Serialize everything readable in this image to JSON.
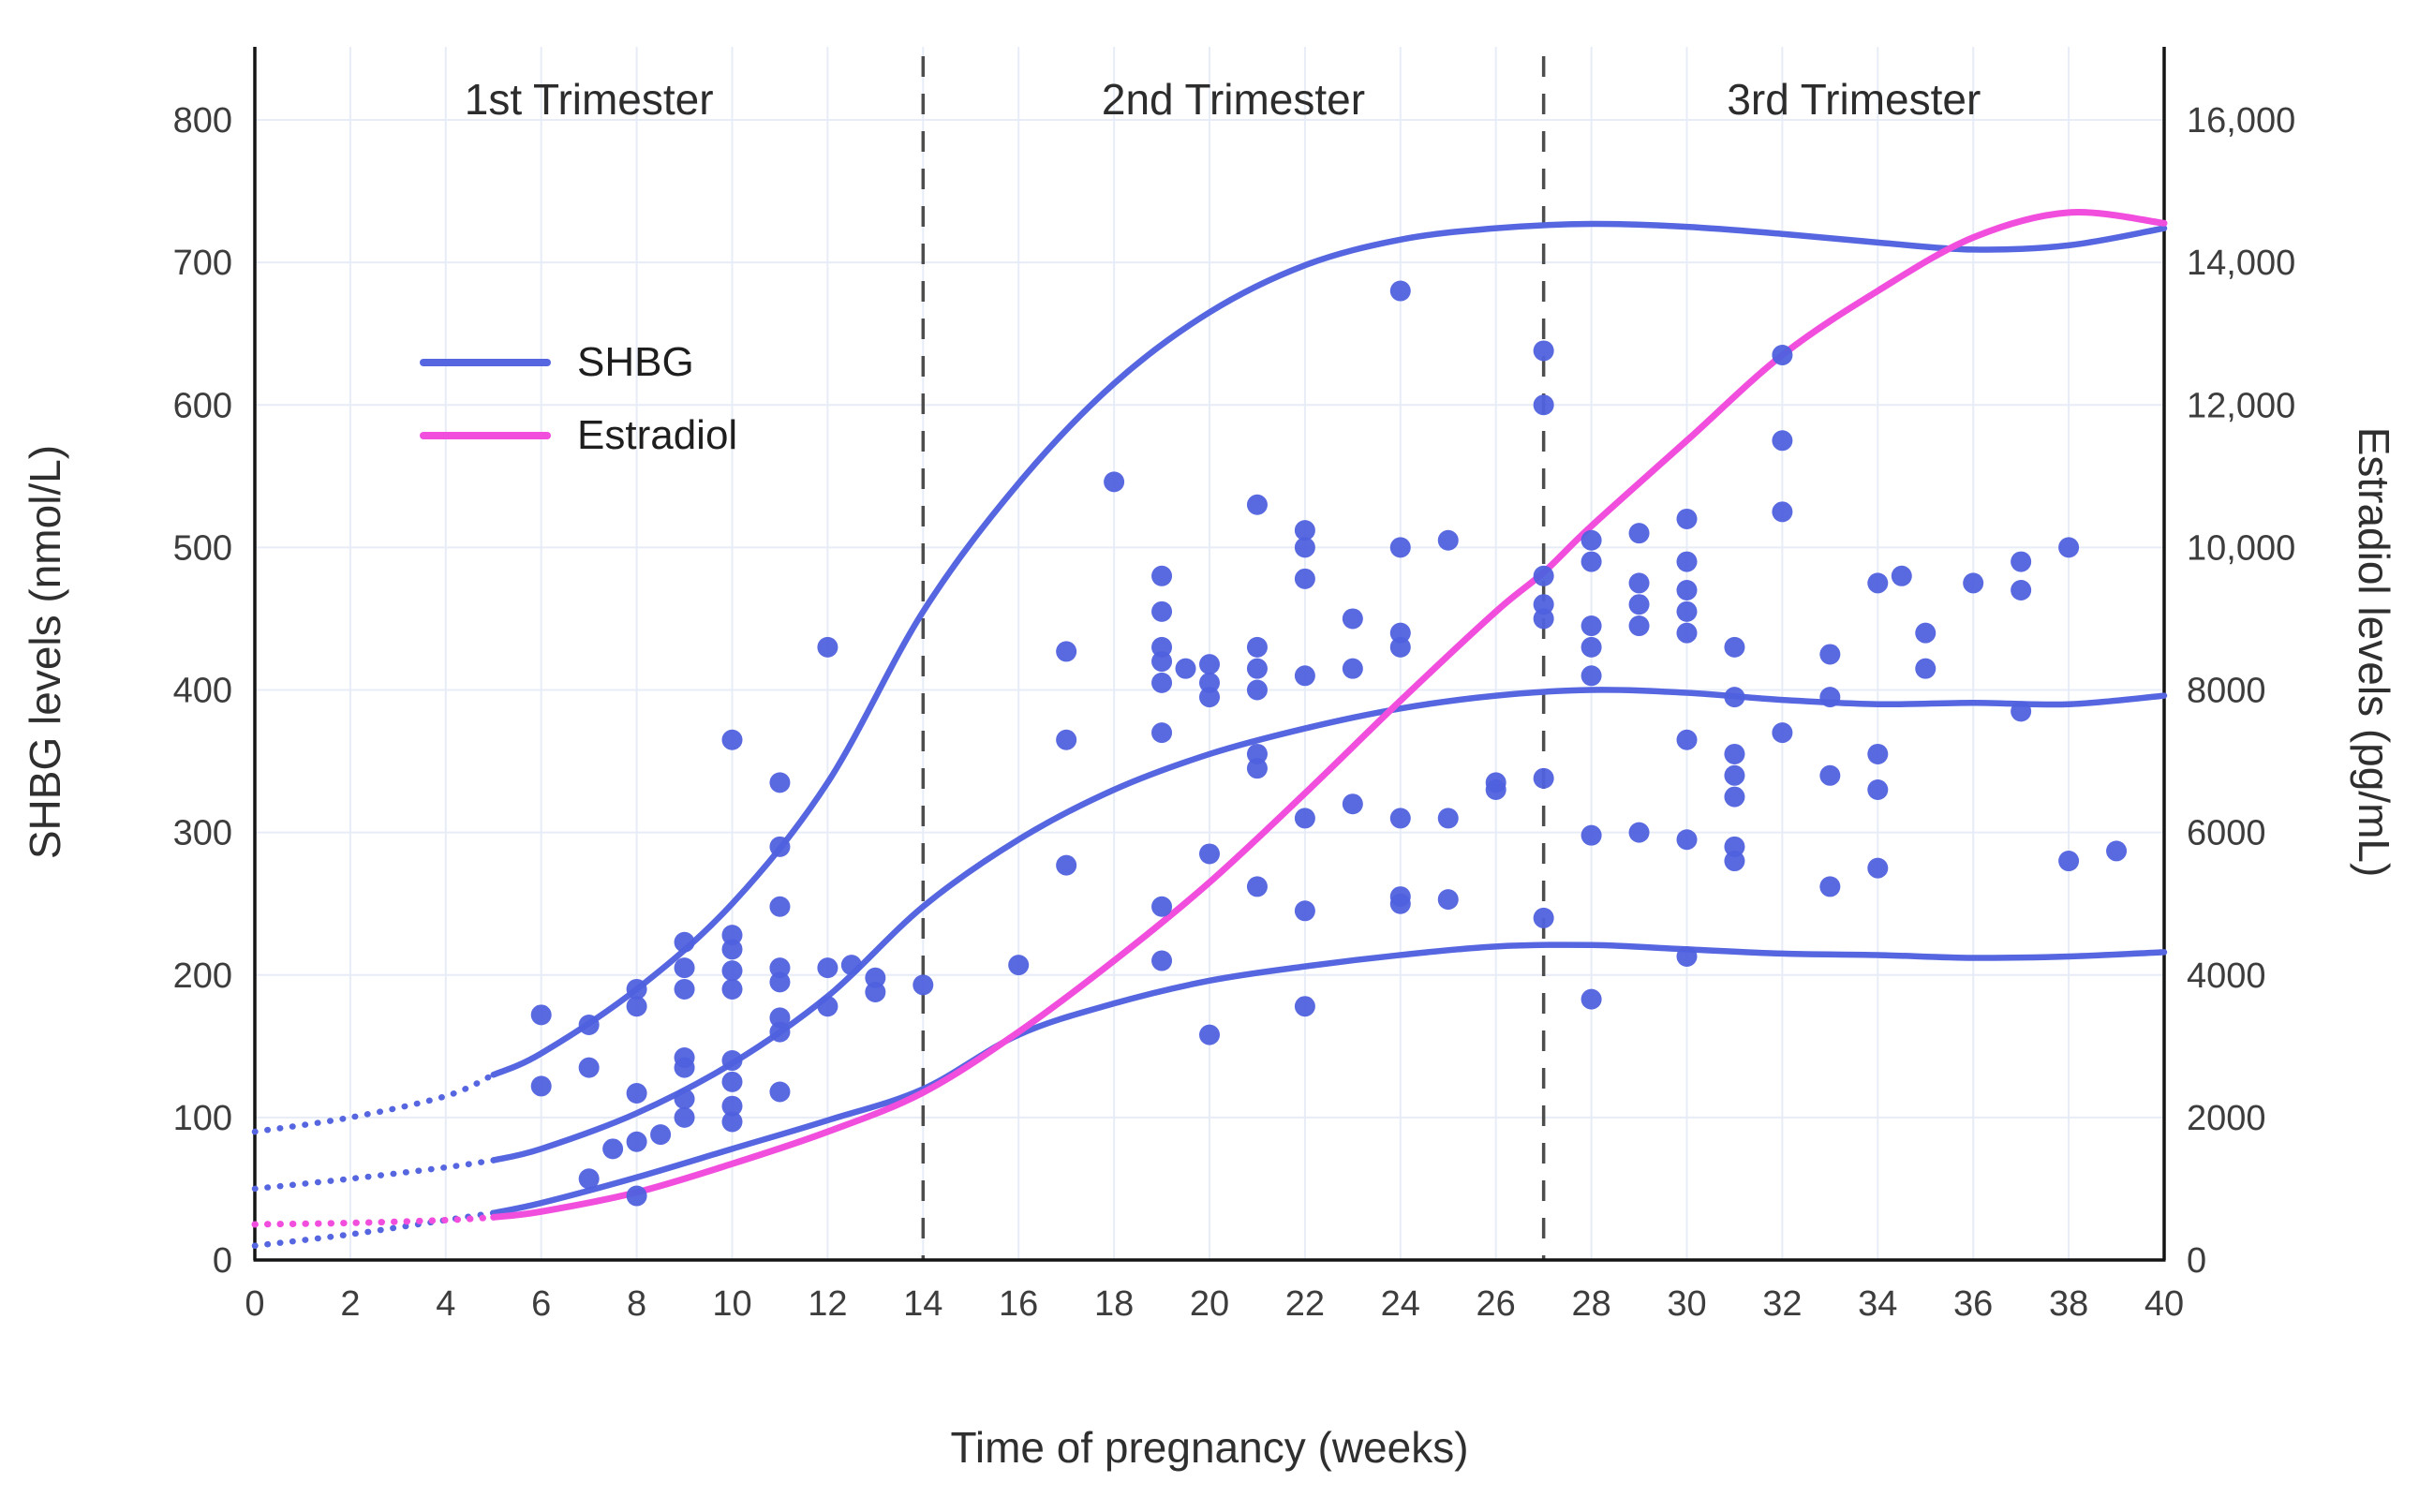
{
  "figure": {
    "title": "",
    "xlabel": "Time of pregnancy (weeks)",
    "ylabel_left": "SHBG levels (nmol/L)",
    "ylabel_right": "Estradiol levels (pg/mL)"
  },
  "colors": {
    "shbg": "#5566e0",
    "estradiol": "#f24ede",
    "grid": "#e7ecf7",
    "axis": "#141414",
    "divider": "#4d4d4d",
    "tick_text": "#3d3d3d",
    "annotation_text": "#2c2c2c"
  },
  "chart_data": {
    "type": "scatter",
    "title": "",
    "xlabel": "Time of pregnancy (weeks)",
    "ylabel_left": "SHBG levels (nmol/L)",
    "ylabel_right": "Estradiol levels (pg/mL)",
    "xlim": [
      0,
      40
    ],
    "ylim_left": [
      0,
      800
    ],
    "ylim_right": [
      0,
      16000
    ],
    "grid": true,
    "x_ticks": [
      0,
      2,
      4,
      6,
      8,
      10,
      12,
      14,
      16,
      18,
      20,
      22,
      24,
      26,
      28,
      30,
      32,
      34,
      36,
      38,
      40
    ],
    "y_ticks_left": [
      0,
      100,
      200,
      300,
      400,
      500,
      600,
      700,
      800
    ],
    "y_ticks_right": [
      {
        "value": 0,
        "label": "0"
      },
      {
        "value": 2000,
        "label": "2000"
      },
      {
        "value": 4000,
        "label": "4000"
      },
      {
        "value": 6000,
        "label": "6000"
      },
      {
        "value": 8000,
        "label": "8000"
      },
      {
        "value": 10000,
        "label": "10,000"
      },
      {
        "value": 12000,
        "label": "12,000"
      },
      {
        "value": 14000,
        "label": "14,000"
      },
      {
        "value": 16000,
        "label": "16,000"
      }
    ],
    "trimester_dividers_weeks": [
      14,
      27
    ],
    "annotations": [
      {
        "text": "1st Trimester",
        "week": 7
      },
      {
        "text": "2nd Trimester",
        "week": 20.5
      },
      {
        "text": "3rd Trimester",
        "week": 33.5
      }
    ],
    "legend": {
      "items": [
        {
          "label": "SHBG",
          "color": "#5566e0"
        },
        {
          "label": "Estradiol",
          "color": "#f24ede"
        }
      ]
    },
    "dotted_until_week": 5,
    "series": [
      {
        "name": "SHBG upper bound",
        "axis": "left",
        "color": "#5566e0",
        "width": 6.5,
        "points": [
          [
            0,
            90
          ],
          [
            2,
            100
          ],
          [
            4,
            115
          ],
          [
            5,
            130
          ],
          [
            6,
            145
          ],
          [
            8,
            190
          ],
          [
            10,
            250
          ],
          [
            12,
            335
          ],
          [
            14,
            455
          ],
          [
            16,
            545
          ],
          [
            18,
            615
          ],
          [
            20,
            665
          ],
          [
            22,
            698
          ],
          [
            24,
            716
          ],
          [
            26,
            724
          ],
          [
            28,
            727
          ],
          [
            30,
            725
          ],
          [
            32,
            720
          ],
          [
            34,
            714
          ],
          [
            36,
            709
          ],
          [
            38,
            712
          ],
          [
            40,
            724
          ]
        ]
      },
      {
        "name": "SHBG median",
        "axis": "left",
        "color": "#5566e0",
        "width": 6.5,
        "points": [
          [
            0,
            50
          ],
          [
            2,
            57
          ],
          [
            4,
            65
          ],
          [
            5,
            70
          ],
          [
            6,
            78
          ],
          [
            8,
            103
          ],
          [
            10,
            138
          ],
          [
            12,
            185
          ],
          [
            14,
            248
          ],
          [
            16,
            295
          ],
          [
            18,
            330
          ],
          [
            20,
            355
          ],
          [
            22,
            373
          ],
          [
            24,
            387
          ],
          [
            26,
            396
          ],
          [
            28,
            400
          ],
          [
            30,
            398
          ],
          [
            32,
            393
          ],
          [
            34,
            390
          ],
          [
            36,
            391
          ],
          [
            38,
            390
          ],
          [
            40,
            396
          ]
        ]
      },
      {
        "name": "SHBG lower bound",
        "axis": "left",
        "color": "#5566e0",
        "width": 6.5,
        "points": [
          [
            0,
            10
          ],
          [
            2,
            18
          ],
          [
            4,
            28
          ],
          [
            5,
            33
          ],
          [
            6,
            40
          ],
          [
            8,
            58
          ],
          [
            10,
            78
          ],
          [
            12,
            98
          ],
          [
            14,
            120
          ],
          [
            16,
            158
          ],
          [
            18,
            180
          ],
          [
            20,
            196
          ],
          [
            22,
            206
          ],
          [
            24,
            214
          ],
          [
            26,
            220
          ],
          [
            28,
            221
          ],
          [
            30,
            218
          ],
          [
            32,
            215
          ],
          [
            34,
            214
          ],
          [
            36,
            212
          ],
          [
            38,
            213
          ],
          [
            40,
            216
          ]
        ]
      },
      {
        "name": "Estradiol mean",
        "axis": "right",
        "color": "#f24ede",
        "width": 7,
        "points": [
          [
            0,
            500
          ],
          [
            2,
            520
          ],
          [
            4,
            560
          ],
          [
            5,
            600
          ],
          [
            6,
            680
          ],
          [
            8,
            950
          ],
          [
            10,
            1350
          ],
          [
            12,
            1800
          ],
          [
            14,
            2350
          ],
          [
            16,
            3200
          ],
          [
            18,
            4200
          ],
          [
            20,
            5300
          ],
          [
            22,
            6550
          ],
          [
            24,
            7850
          ],
          [
            26,
            9100
          ],
          [
            27,
            9650
          ],
          [
            28,
            10300
          ],
          [
            30,
            11500
          ],
          [
            32,
            12700
          ],
          [
            34,
            13600
          ],
          [
            36,
            14350
          ],
          [
            38,
            14700
          ],
          [
            40,
            14550
          ]
        ]
      }
    ],
    "scatter": {
      "name": "SHBG individual measurements",
      "axis": "left",
      "color": "#5061de",
      "radius": 11,
      "points": [
        [
          6,
          122
        ],
        [
          6,
          172
        ],
        [
          7,
          57
        ],
        [
          7,
          135
        ],
        [
          7,
          165
        ],
        [
          7.5,
          78
        ],
        [
          8,
          45
        ],
        [
          8,
          83
        ],
        [
          8,
          117
        ],
        [
          8,
          178
        ],
        [
          8,
          190
        ],
        [
          8.5,
          88
        ],
        [
          9,
          100
        ],
        [
          9,
          113
        ],
        [
          9,
          135
        ],
        [
          9,
          142
        ],
        [
          9,
          190
        ],
        [
          9,
          205
        ],
        [
          9,
          223
        ],
        [
          10,
          97
        ],
        [
          10,
          108
        ],
        [
          10,
          125
        ],
        [
          10,
          140
        ],
        [
          10,
          190
        ],
        [
          10,
          203
        ],
        [
          10,
          218
        ],
        [
          10,
          228
        ],
        [
          10,
          365
        ],
        [
          11,
          118
        ],
        [
          11,
          160
        ],
        [
          11,
          170
        ],
        [
          11,
          195
        ],
        [
          11,
          205
        ],
        [
          11,
          248
        ],
        [
          11,
          290
        ],
        [
          11,
          335
        ],
        [
          12,
          178
        ],
        [
          12,
          205
        ],
        [
          12,
          430
        ],
        [
          12.5,
          207
        ],
        [
          13,
          188
        ],
        [
          13,
          198
        ],
        [
          14,
          193
        ],
        [
          16,
          207
        ],
        [
          17,
          277
        ],
        [
          17,
          365
        ],
        [
          17,
          427
        ],
        [
          18,
          546
        ],
        [
          19,
          210
        ],
        [
          19,
          248
        ],
        [
          19,
          370
        ],
        [
          19,
          405
        ],
        [
          19,
          420
        ],
        [
          19,
          430
        ],
        [
          19,
          455
        ],
        [
          19,
          480
        ],
        [
          19.5,
          415
        ],
        [
          20,
          158
        ],
        [
          20,
          285
        ],
        [
          20,
          395
        ],
        [
          20,
          405
        ],
        [
          20,
          418
        ],
        [
          21,
          262
        ],
        [
          21,
          345
        ],
        [
          21,
          355
        ],
        [
          21,
          400
        ],
        [
          21,
          415
        ],
        [
          21,
          430
        ],
        [
          21,
          530
        ],
        [
          22,
          178
        ],
        [
          22,
          245
        ],
        [
          22,
          310
        ],
        [
          22,
          410
        ],
        [
          22,
          478
        ],
        [
          22,
          500
        ],
        [
          22,
          512
        ],
        [
          23,
          320
        ],
        [
          23,
          415
        ],
        [
          23,
          450
        ],
        [
          24,
          250
        ],
        [
          24,
          255
        ],
        [
          24,
          310
        ],
        [
          24,
          430
        ],
        [
          24,
          440
        ],
        [
          24,
          500
        ],
        [
          24,
          680
        ],
        [
          25,
          253
        ],
        [
          25,
          310
        ],
        [
          25,
          505
        ],
        [
          26,
          330
        ],
        [
          26,
          335
        ],
        [
          27,
          240
        ],
        [
          27,
          338
        ],
        [
          27,
          450
        ],
        [
          27,
          460
        ],
        [
          27,
          480
        ],
        [
          27,
          600
        ],
        [
          27,
          638
        ],
        [
          28,
          183
        ],
        [
          28,
          298
        ],
        [
          28,
          410
        ],
        [
          28,
          430
        ],
        [
          28,
          445
        ],
        [
          28,
          490
        ],
        [
          28,
          505
        ],
        [
          29,
          300
        ],
        [
          29,
          445
        ],
        [
          29,
          460
        ],
        [
          29,
          475
        ],
        [
          29,
          510
        ],
        [
          30,
          213
        ],
        [
          30,
          295
        ],
        [
          30,
          365
        ],
        [
          30,
          440
        ],
        [
          30,
          455
        ],
        [
          30,
          470
        ],
        [
          30,
          490
        ],
        [
          30,
          520
        ],
        [
          31,
          280
        ],
        [
          31,
          290
        ],
        [
          31,
          325
        ],
        [
          31,
          340
        ],
        [
          31,
          355
        ],
        [
          31,
          395
        ],
        [
          31,
          430
        ],
        [
          32,
          370
        ],
        [
          32,
          525
        ],
        [
          32,
          575
        ],
        [
          32,
          635
        ],
        [
          33,
          262
        ],
        [
          33,
          340
        ],
        [
          33,
          395
        ],
        [
          33,
          425
        ],
        [
          34,
          275
        ],
        [
          34,
          330
        ],
        [
          34,
          355
        ],
        [
          34,
          475
        ],
        [
          34.5,
          480
        ],
        [
          35,
          415
        ],
        [
          35,
          440
        ],
        [
          36,
          475
        ],
        [
          37,
          385
        ],
        [
          37,
          470
        ],
        [
          37,
          490
        ],
        [
          38,
          280
        ],
        [
          38,
          500
        ],
        [
          39,
          287
        ]
      ]
    }
  }
}
